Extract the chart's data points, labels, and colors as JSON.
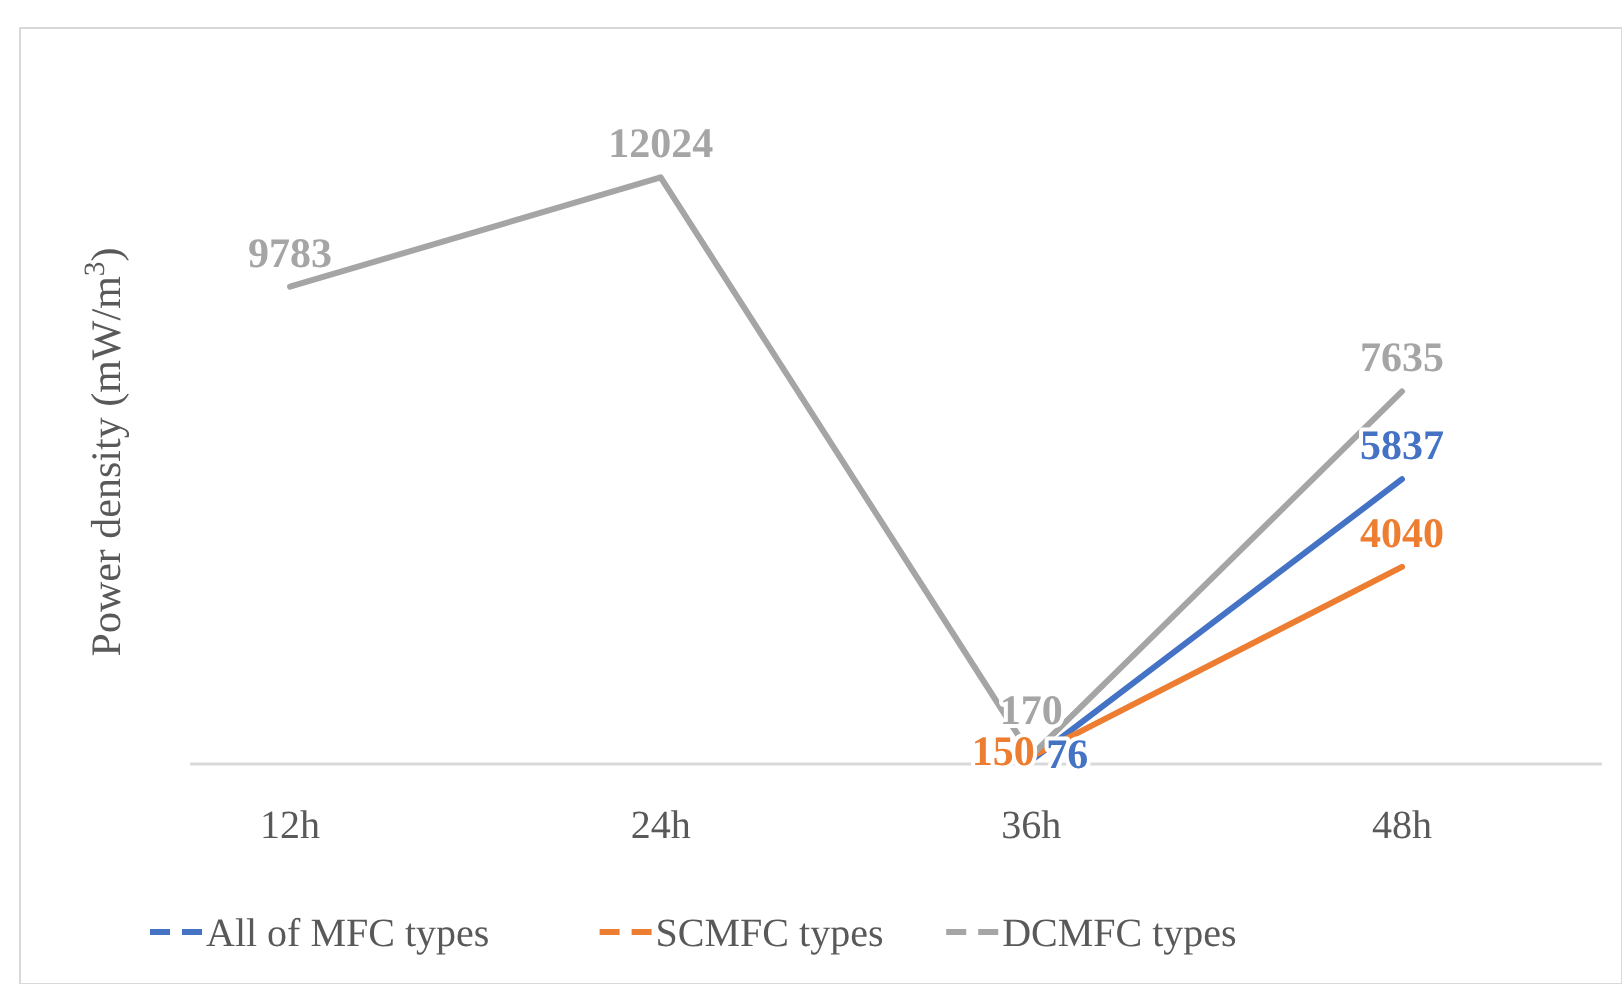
{
  "chart_data": {
    "type": "line",
    "ylabel": "Power density (mW/m$^{3}$)",
    "categories": [
      "12h",
      "24h",
      "36h",
      "48h"
    ],
    "series": [
      {
        "name": "All of MFC types",
        "color": "#4472c4",
        "values": [
          null,
          null,
          76,
          5837
        ]
      },
      {
        "name": "SCMFC types",
        "color": "#ed7d31",
        "values": [
          null,
          null,
          150,
          4040
        ]
      },
      {
        "name": "DCMFC types",
        "color": "#a5a5a5",
        "values": [
          9783,
          12024,
          170,
          7635
        ]
      }
    ],
    "data_labels": true,
    "legend": "bottom",
    "marker": "none",
    "line_style": "solid"
  }
}
